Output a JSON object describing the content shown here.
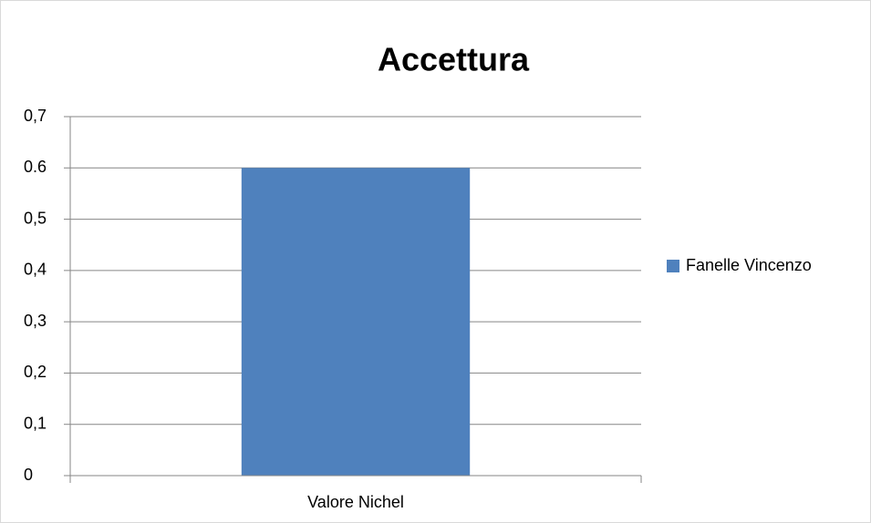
{
  "chart_data": {
    "type": "bar",
    "title": "Accettura",
    "categories": [
      "Valore Nichel"
    ],
    "series": [
      {
        "name": "Fanelle Vincenzo",
        "color": "#4f81bd",
        "values": [
          0.6
        ]
      }
    ],
    "ylim": [
      0,
      0.7
    ],
    "yticks": [
      0,
      {
        "value": 0.1,
        "label": "0,1"
      },
      {
        "value": 0.2,
        "label": "0,2"
      },
      {
        "value": 0.3,
        "label": "0,3"
      },
      {
        "value": 0.4,
        "label": "0,4"
      },
      {
        "value": 0.5,
        "label": "0,5"
      },
      0.6,
      {
        "value": 0.7,
        "label": "0,7"
      }
    ],
    "grid": true,
    "legend": "right"
  }
}
